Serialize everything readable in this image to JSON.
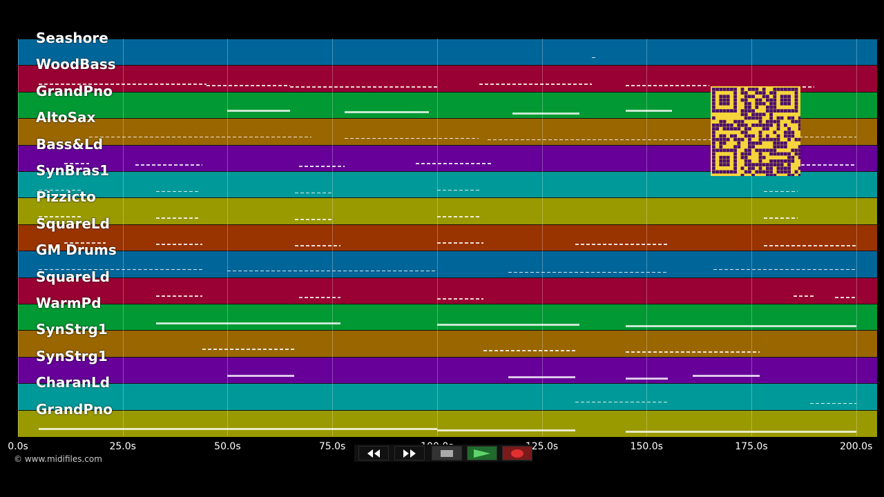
{
  "tracks": [
    {
      "name": "Seashore",
      "color": "#006699",
      "notes": [
        [
          137,
          138,
          1
        ]
      ]
    },
    {
      "name": "WoodBass",
      "color": "#990033",
      "notes": [
        [
          5,
          45,
          1
        ],
        [
          45,
          65,
          1
        ],
        [
          65,
          100,
          1
        ],
        [
          110,
          137,
          1
        ],
        [
          145,
          165,
          1
        ],
        [
          170,
          190,
          1
        ]
      ]
    },
    {
      "name": "GrandPno",
      "color": "#009933",
      "notes": [
        [
          50,
          65,
          2
        ],
        [
          78,
          98,
          2
        ],
        [
          118,
          134,
          2
        ],
        [
          145,
          156,
          2
        ]
      ]
    },
    {
      "name": "AltoSax",
      "color": "#996600",
      "notes": [
        [
          17,
          70,
          1
        ],
        [
          78,
          110,
          1
        ],
        [
          112,
          175,
          1
        ],
        [
          185,
          200,
          1
        ]
      ]
    },
    {
      "name": "Bass&Ld",
      "color": "#660099",
      "notes": [
        [
          11,
          17,
          1
        ],
        [
          28,
          44,
          1
        ],
        [
          67,
          78,
          1
        ],
        [
          95,
          113,
          1
        ],
        [
          183,
          200,
          1
        ]
      ]
    },
    {
      "name": "SynBras1",
      "color": "#009999",
      "notes": [
        [
          5,
          15,
          1
        ],
        [
          33,
          43,
          1
        ],
        [
          66,
          75,
          1
        ],
        [
          100,
          110,
          1
        ],
        [
          178,
          186,
          1
        ]
      ]
    },
    {
      "name": "Pizzicto",
      "color": "#999900",
      "notes": [
        [
          5,
          15,
          1
        ],
        [
          33,
          43,
          1
        ],
        [
          66,
          75,
          1
        ],
        [
          100,
          110,
          1
        ],
        [
          178,
          186,
          1
        ]
      ]
    },
    {
      "name": "SquareLd",
      "color": "#993300",
      "notes": [
        [
          11,
          21,
          1
        ],
        [
          33,
          44,
          1
        ],
        [
          66,
          77,
          1
        ],
        [
          100,
          111,
          1
        ],
        [
          133,
          155,
          1
        ],
        [
          178,
          200,
          1
        ]
      ]
    },
    {
      "name": "GM Drums",
      "color": "#006699",
      "notes": [
        [
          5,
          44,
          1
        ],
        [
          50,
          100,
          1
        ],
        [
          117,
          155,
          1
        ],
        [
          166,
          200,
          1
        ]
      ]
    },
    {
      "name": "SquareLd",
      "color": "#990033",
      "notes": [
        [
          33,
          44,
          1
        ],
        [
          67,
          77,
          1
        ],
        [
          100,
          111,
          1
        ],
        [
          185,
          190,
          1
        ],
        [
          195,
          200,
          1
        ]
      ]
    },
    {
      "name": "WarmPd",
      "color": "#009933",
      "notes": [
        [
          33,
          77,
          2
        ],
        [
          100,
          134,
          2
        ],
        [
          145,
          200,
          2
        ]
      ]
    },
    {
      "name": "SynStrg1",
      "color": "#996600",
      "notes": [
        [
          44,
          66,
          1
        ],
        [
          111,
          133,
          1
        ],
        [
          145,
          177,
          1
        ]
      ]
    },
    {
      "name": "SynStrg1",
      "color": "#660099",
      "notes": [
        [
          50,
          66,
          2
        ],
        [
          117,
          133,
          2
        ],
        [
          145,
          155,
          2
        ],
        [
          161,
          177,
          2
        ]
      ]
    },
    {
      "name": "CharanLd",
      "color": "#009999",
      "notes": [
        [
          133,
          155,
          1
        ],
        [
          189,
          200,
          1
        ]
      ]
    },
    {
      "name": "GrandPno",
      "color": "#999900",
      "notes": [
        [
          5,
          100,
          2
        ],
        [
          100,
          133,
          2
        ],
        [
          145,
          200,
          2
        ]
      ]
    }
  ],
  "axis": {
    "min": 0,
    "max": 205,
    "ticks": [
      {
        "v": 0,
        "label": "0.0s"
      },
      {
        "v": 25,
        "label": "25.0s"
      },
      {
        "v": 50,
        "label": "50.0s"
      },
      {
        "v": 75,
        "label": "75.0s"
      },
      {
        "v": 100,
        "label": "100.0s"
      },
      {
        "v": 125,
        "label": "125.0s"
      },
      {
        "v": 150,
        "label": "150.0s"
      },
      {
        "v": 175,
        "label": "175.0s"
      },
      {
        "v": 200,
        "label": "200.0s"
      }
    ]
  },
  "footer": {
    "copyright": "© www.midifiles.com"
  },
  "controls": {
    "rewind_icon": "rewind-icon",
    "forward_icon": "fast-forward-icon",
    "stop_icon": "stop-icon",
    "play_icon": "play-icon",
    "record_icon": "record-icon",
    "colors": {
      "play": "#1f6b2b",
      "record": "#7a1a1a",
      "stop": "#333333"
    }
  },
  "qr_code": {
    "colors": {
      "fg": "#4a0f6b",
      "bg": "#f6d43c"
    }
  }
}
